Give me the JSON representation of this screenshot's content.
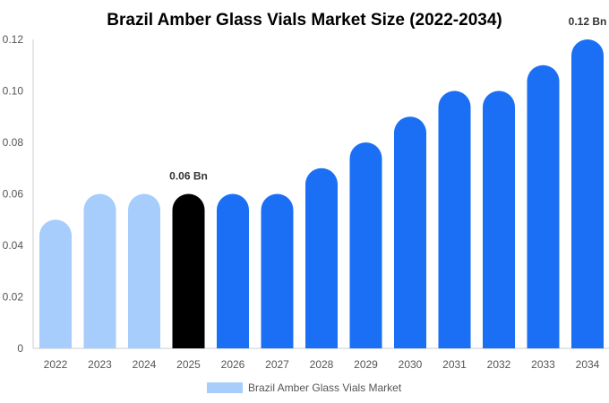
{
  "chart_data": {
    "type": "bar",
    "title": "Brazil Amber Glass Vials Market Size (2022-2034)",
    "xlabel": "",
    "ylabel": "",
    "categories": [
      "2022",
      "2023",
      "2024",
      "2025",
      "2026",
      "2027",
      "2028",
      "2029",
      "2030",
      "2031",
      "2032",
      "2033",
      "2034"
    ],
    "series": [
      {
        "name": "Brazil Amber Glass Vials Market",
        "values": [
          0.05,
          0.06,
          0.06,
          0.06,
          0.06,
          0.06,
          0.07,
          0.08,
          0.09,
          0.1,
          0.1,
          0.11,
          0.12
        ]
      }
    ],
    "bar_colors": [
      "#a6cdfc",
      "#a6cdfc",
      "#a6cdfc",
      "#000000",
      "#1a6ff5",
      "#1a6ff5",
      "#1a6ff5",
      "#1a6ff5",
      "#1a6ff5",
      "#1a6ff5",
      "#1a6ff5",
      "#1a6ff5",
      "#1a6ff5"
    ],
    "legend_color": "#a6cdfc",
    "ylim": [
      0,
      0.12
    ],
    "yticks": [
      "0",
      "0.02",
      "0.04",
      "0.06",
      "0.08",
      "0.10",
      "0.12"
    ],
    "data_labels": [
      {
        "index": 3,
        "text": "0.06 Bn"
      },
      {
        "index": 12,
        "text": "0.12 Bn"
      }
    ],
    "grid": false,
    "legend_position": "bottom-center"
  }
}
